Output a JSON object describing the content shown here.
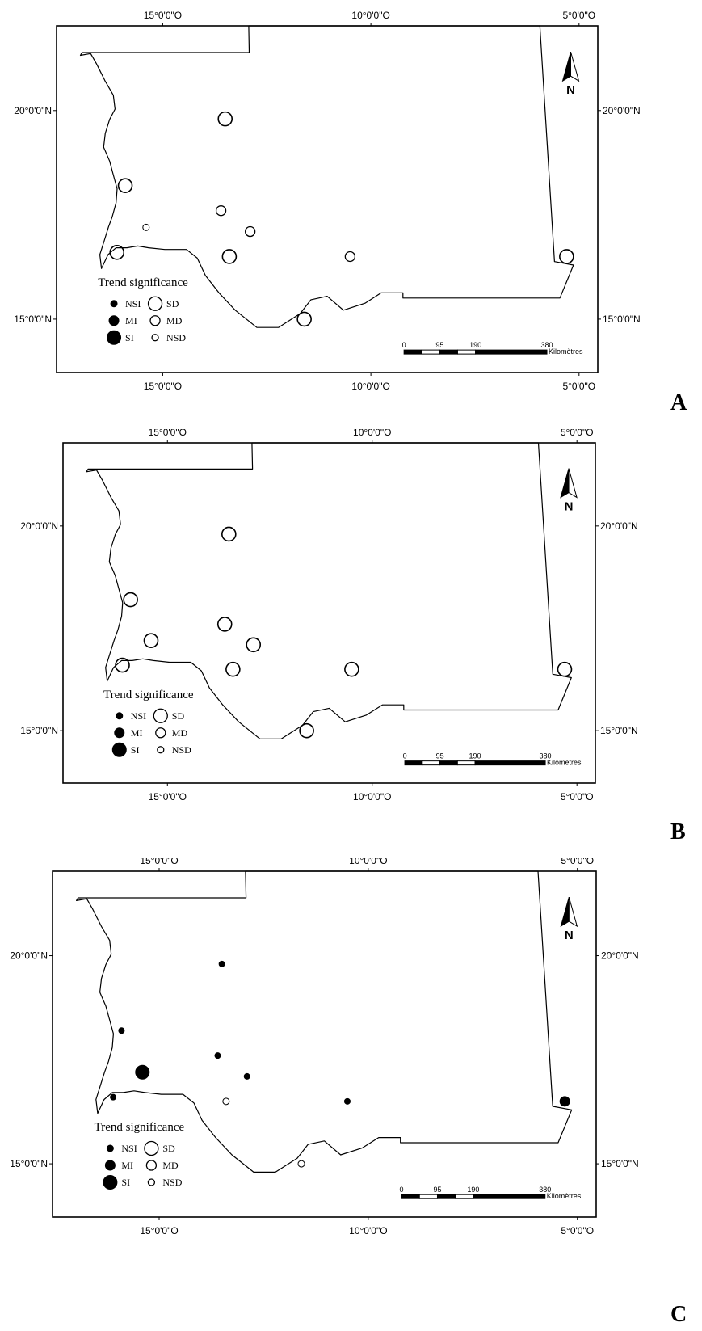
{
  "panels": [
    {
      "letter": "A",
      "lon_ticks": [
        "15°0'0\"O",
        "10°0'0\"O",
        "5°0'0\"O"
      ],
      "lat_ticks": [
        "20°0'0\"N",
        "15°0'0\"N"
      ],
      "legend": {
        "title": "Trend significance",
        "items": [
          {
            "label": "NSI",
            "style": "filled",
            "size": "small"
          },
          {
            "label": "MI",
            "style": "filled",
            "size": "medium"
          },
          {
            "label": "SI",
            "style": "filled",
            "size": "large"
          },
          {
            "label": "SD",
            "style": "open",
            "size": "large"
          },
          {
            "label": "MD",
            "style": "open",
            "size": "medium"
          },
          {
            "label": "NSD",
            "style": "open",
            "size": "small"
          }
        ]
      },
      "scale": {
        "labels": [
          "0",
          "95",
          "190",
          "380"
        ],
        "unit": "Kilomètres"
      },
      "north": "N",
      "stations": [
        {
          "lon": -13.5,
          "lat": 19.8,
          "category": "SD"
        },
        {
          "lon": -15.9,
          "lat": 18.2,
          "category": "SD"
        },
        {
          "lon": -13.6,
          "lat": 17.6,
          "category": "MD"
        },
        {
          "lon": -15.4,
          "lat": 17.2,
          "category": "NSD"
        },
        {
          "lon": -12.9,
          "lat": 17.1,
          "category": "MD"
        },
        {
          "lon": -16.1,
          "lat": 16.6,
          "category": "SD"
        },
        {
          "lon": -13.4,
          "lat": 16.5,
          "category": "SD"
        },
        {
          "lon": -11.6,
          "lat": 15.0,
          "category": "SD"
        },
        {
          "lon": -10.5,
          "lat": 16.5,
          "category": "MD"
        },
        {
          "lon": -5.3,
          "lat": 16.5,
          "category": "SD"
        }
      ]
    },
    {
      "letter": "B",
      "lon_ticks": [
        "15°0'0\"O",
        "10°0'0\"O",
        "5°0'0\"O"
      ],
      "lat_ticks": [
        "20°0'0\"N",
        "15°0'0\"N"
      ],
      "legend": {
        "title": "Trend significance",
        "items": [
          {
            "label": "NSI",
            "style": "filled",
            "size": "small"
          },
          {
            "label": "MI",
            "style": "filled",
            "size": "medium"
          },
          {
            "label": "SI",
            "style": "filled",
            "size": "large"
          },
          {
            "label": "SD",
            "style": "open",
            "size": "large"
          },
          {
            "label": "MD",
            "style": "open",
            "size": "medium"
          },
          {
            "label": "NSD",
            "style": "open",
            "size": "small"
          }
        ]
      },
      "scale": {
        "labels": [
          "0",
          "95",
          "190",
          "380"
        ],
        "unit": "Kilomètres"
      },
      "north": "N",
      "stations": [
        {
          "lon": -13.5,
          "lat": 19.8,
          "category": "SD"
        },
        {
          "lon": -15.9,
          "lat": 18.2,
          "category": "SD"
        },
        {
          "lon": -13.6,
          "lat": 17.6,
          "category": "SD"
        },
        {
          "lon": -15.4,
          "lat": 17.2,
          "category": "SD"
        },
        {
          "lon": -12.9,
          "lat": 17.1,
          "category": "SD"
        },
        {
          "lon": -16.1,
          "lat": 16.6,
          "category": "SD"
        },
        {
          "lon": -13.4,
          "lat": 16.5,
          "category": "SD"
        },
        {
          "lon": -11.6,
          "lat": 15.0,
          "category": "SD"
        },
        {
          "lon": -10.5,
          "lat": 16.5,
          "category": "SD"
        },
        {
          "lon": -5.3,
          "lat": 16.5,
          "category": "SD"
        }
      ]
    },
    {
      "letter": "C",
      "lon_ticks": [
        "15°0'0\"O",
        "10°0'0\"O",
        "5°0'0\"O"
      ],
      "lat_ticks": [
        "20°0'0\"N",
        "15°0'0\"N"
      ],
      "legend": {
        "title": "Trend significance",
        "items": [
          {
            "label": "NSI",
            "style": "filled",
            "size": "small"
          },
          {
            "label": "MI",
            "style": "filled",
            "size": "medium"
          },
          {
            "label": "SI",
            "style": "filled",
            "size": "large"
          },
          {
            "label": "SD",
            "style": "open",
            "size": "large"
          },
          {
            "label": "MD",
            "style": "open",
            "size": "medium"
          },
          {
            "label": "NSD",
            "style": "open",
            "size": "small"
          }
        ]
      },
      "scale": {
        "labels": [
          "0",
          "95",
          "190",
          "380"
        ],
        "unit": "Kilomètres"
      },
      "north": "N",
      "stations": [
        {
          "lon": -13.5,
          "lat": 19.8,
          "category": "NSI"
        },
        {
          "lon": -15.9,
          "lat": 18.2,
          "category": "NSI"
        },
        {
          "lon": -13.6,
          "lat": 17.6,
          "category": "NSI"
        },
        {
          "lon": -15.4,
          "lat": 17.2,
          "category": "SI"
        },
        {
          "lon": -12.9,
          "lat": 17.1,
          "category": "NSI"
        },
        {
          "lon": -16.1,
          "lat": 16.6,
          "category": "NSI"
        },
        {
          "lon": -13.4,
          "lat": 16.5,
          "category": "NSD"
        },
        {
          "lon": -11.6,
          "lat": 15.0,
          "category": "NSD"
        },
        {
          "lon": -10.5,
          "lat": 16.5,
          "category": "NSI"
        },
        {
          "lon": -5.3,
          "lat": 16.5,
          "category": "MI"
        }
      ]
    }
  ]
}
